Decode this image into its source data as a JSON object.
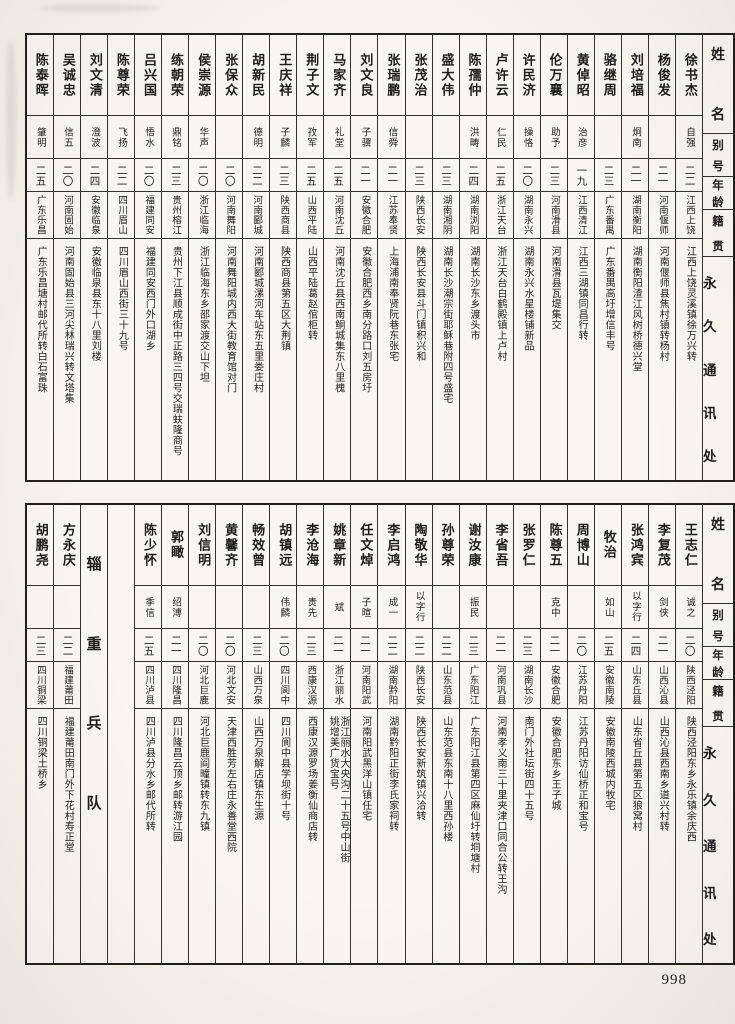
{
  "page": {
    "number": "998"
  },
  "header_labels": {
    "name": "姓名",
    "alias": "别号",
    "age": "年龄",
    "native": "籍贯",
    "address": "永久通讯处"
  },
  "tables": [
    {
      "id": "top",
      "columns": [
        {
          "name": "徐书杰",
          "alias": "自强",
          "age": "二二",
          "native": "江西上饶",
          "address": "江西上饶灵溪镇徐万兴转"
        },
        {
          "name": "杨俊发",
          "alias": "",
          "age": "二一",
          "native": "河南偃师",
          "address": "河南偃师县焦村镇转杨村"
        },
        {
          "name": "刘培福",
          "alias": "炯南",
          "age": "二一",
          "native": "湖南衡阳",
          "address": "湖南衡阳渣江风树桥德兴堂"
        },
        {
          "name": "骆继周",
          "alias": "",
          "age": "二三",
          "native": "广东番禺",
          "address": "广东番禺高圩增信丰号"
        },
        {
          "name": "黄倬昭",
          "alias": "治彦",
          "age": "一九",
          "native": "江西清江",
          "address": "江西三湖镇同昌行转"
        },
        {
          "name": "伦万襄",
          "alias": "助予",
          "age": "二三",
          "native": "河南滑县",
          "address": "河南滑县瓦堤集交"
        },
        {
          "name": "许民济",
          "alias": "操恪",
          "age": "二〇",
          "native": "湖南永兴",
          "address": "湖南永兴水星楼铺新品"
        },
        {
          "name": "卢许云",
          "alias": "仁民",
          "age": "二五",
          "native": "浙江天台",
          "address": "浙江天台白鹤殿镇上卢村"
        },
        {
          "name": "陈孺仲",
          "alias": "洪畴",
          "age": "二四",
          "native": "湖南浏阳",
          "address": "湖南长沙东乡渡头市"
        },
        {
          "name": "盛大伟",
          "alias": "",
          "age": "二三",
          "native": "湖南湘阴",
          "address": "湖南长沙潮宗街耶稣巷附四号盛宅"
        },
        {
          "name": "张茂治",
          "alias": "",
          "age": "二三",
          "native": "陕西长安",
          "address": "陕西长安县斗门镇积兴和"
        },
        {
          "name": "张瑞鹏",
          "alias": "信舜",
          "age": "二一",
          "native": "江苏奉贤",
          "address": "上海浦南奉贤阮巷东张宅"
        },
        {
          "name": "刘文良",
          "alias": "子骥",
          "age": "二一",
          "native": "安徽合肥",
          "address": "安徽合肥西乡南分路口刘五房圩"
        },
        {
          "name": "马家齐",
          "alias": "礼堂",
          "age": "二五",
          "native": "河南沈丘",
          "address": "河南沈丘县西南鲖城集东八里槐"
        },
        {
          "name": "荆子文",
          "alias": "孜军",
          "age": "二五",
          "native": "山西平陆",
          "address": "山西平陆葛赵倌柜转"
        },
        {
          "name": "王庆祥",
          "alias": "子麟",
          "age": "二三",
          "native": "陕西商县",
          "address": "陕西商县第五区大荆镇"
        },
        {
          "name": "胡新民",
          "alias": "德明",
          "age": "二二",
          "native": "河南郾城",
          "address": "河南郾城漯河车站东五里娄庄村"
        },
        {
          "name": "张保众",
          "alias": "",
          "age": "二〇",
          "native": "河南舞阳",
          "address": "河南舞阳城内西大街教育馆对门"
        },
        {
          "name": "侯崇源",
          "alias": "华声",
          "age": "二〇",
          "native": "浙江临海",
          "address": "浙江临海东乡邵家渡交山下坦"
        },
        {
          "name": "练朝荣",
          "alias": "鼎铭",
          "age": "二三",
          "native": "贵州榕江",
          "address": "贵州下江县顺成街中正路三四号交瑞蚨隆商号"
        },
        {
          "name": "吕兴国",
          "alias": "悟水",
          "age": "二〇",
          "native": "福建同安",
          "address": "福建同安西门外口湖乡"
        },
        {
          "name": "陈尊荣",
          "alias": "飞扬",
          "age": "二二",
          "native": "四川眉山",
          "address": "四川眉山西街三十九号"
        },
        {
          "name": "刘文清",
          "alias": "澄波",
          "age": "二四",
          "native": "安徽临泉",
          "address": "安徽临泉县东十八里刘楼"
        },
        {
          "name": "吴诚忠",
          "alias": "信五",
          "age": "二〇",
          "native": "河南固始",
          "address": "河南固始县三河尖林瑞兴转文塔集"
        },
        {
          "name": "陈泰晖",
          "alias": "肇明",
          "age": "二五",
          "native": "广东乐昌",
          "address": "广东乐昌塘村邮代所转白石富珠"
        }
      ]
    },
    {
      "id": "bottom",
      "columns": [
        {
          "name": "王志仁",
          "alias": "诚之",
          "age": "二〇",
          "native": "陕西泾阳",
          "address": "陕西泾阳东乡永乐镇余庆西"
        },
        {
          "name": "李复茂",
          "alias": "剑侠",
          "age": "二一",
          "native": "山西沁县",
          "address": "山西沁县西南乡道兴村转"
        },
        {
          "name": "张鸿宾",
          "alias": "以字行",
          "age": "二四",
          "native": "山东丘县",
          "address": "山东省丘县第五区狼窝村"
        },
        {
          "name": "牧治",
          "alias": "如山",
          "age": "二五",
          "native": "安徽南陵",
          "address": "安徽南陵西城内牧宅"
        },
        {
          "name": "周博山",
          "alias": "",
          "age": "二〇",
          "native": "江苏丹阳",
          "address": "江苏丹阳访仙桥正和宝号"
        },
        {
          "name": "陈尊五",
          "alias": "克中",
          "age": "二一",
          "native": "安徽合肥",
          "address": "安徽合肥东乡王子城"
        },
        {
          "name": "张罗仁",
          "alias": "",
          "age": "二三",
          "native": "湖南长沙",
          "address": "南门外社坛街四十五号"
        },
        {
          "name": "李省吾",
          "alias": "",
          "age": "二一",
          "native": "河南巩县",
          "address": "河南孝义南三十里夹津口同合公转王沟"
        },
        {
          "name": "谢汝康",
          "alias": "振民",
          "age": "二三",
          "native": "广东阳江",
          "address": "广东阳江县第四区麻仙圩转垌塘村"
        },
        {
          "name": "孙尊荣",
          "alias": "",
          "age": "二二",
          "native": "山东范县",
          "address": "山东范县东南十八里西孙楼"
        },
        {
          "name": "陶敬华",
          "alias": "以字行",
          "age": "二二",
          "native": "陕西长安",
          "address": "陕西长安新筑镇兴洽转"
        },
        {
          "name": "李启鸿",
          "alias": "成一",
          "age": "二二",
          "native": "湖南黔阳",
          "address": "湖南黔阳正街李氏家祠转"
        },
        {
          "name": "任文焯",
          "alias": "子暄",
          "age": "二一",
          "native": "河南阳武",
          "address": "河南阳武黑洋山镇任宅"
        },
        {
          "name": "姚章新",
          "alias": "斌",
          "age": "二一",
          "native": "浙江丽水",
          "address": "浙江丽水大央沟二十五号中山街\n姚增美广货宝号"
        },
        {
          "name": "李沧海",
          "alias": "贵先",
          "age": "二三",
          "native": "西康汉源",
          "address": "西康汉源罗场姜衡仙商店转"
        },
        {
          "name": "胡镇远",
          "alias": "伟麟",
          "age": "二〇",
          "native": "四川阆中",
          "address": "四川阆中县学坝街十号"
        },
        {
          "name": "畅效曾",
          "alias": "",
          "age": "二三",
          "native": "山西万泉",
          "address": "山西万泉解店镇东生源"
        },
        {
          "name": "黄馨齐",
          "alias": "",
          "age": "二〇",
          "native": "河北文安",
          "address": "天津西胜芳左右庄永善堂西院"
        },
        {
          "name": "刘信明",
          "alias": "",
          "age": "二〇",
          "native": "河北巨鹿",
          "address": "河北巨鹿阎疃镇转东九镇"
        },
        {
          "name": "郭瞰",
          "alias": "绍溥",
          "age": "二一",
          "native": "四川隆昌",
          "address": "四川隆昌云顶乡邮转游江园"
        },
        {
          "name": "陈少怀",
          "alias": "季信",
          "age": "二五",
          "native": "四川泸县",
          "address": "四川泸县分水乡邮代所转"
        },
        {
          "type": "empty"
        },
        {
          "type": "divider",
          "label": "辎重兵队"
        },
        {
          "name": "方永庆",
          "alias": "",
          "age": "二二",
          "native": "福建莆田",
          "address": "福建莆田南门外下花村寿正堂"
        },
        {
          "name": "胡鹏尧",
          "alias": "",
          "age": "二三",
          "native": "四川铜梁",
          "address": "四川铜梁土桥乡"
        }
      ]
    }
  ]
}
